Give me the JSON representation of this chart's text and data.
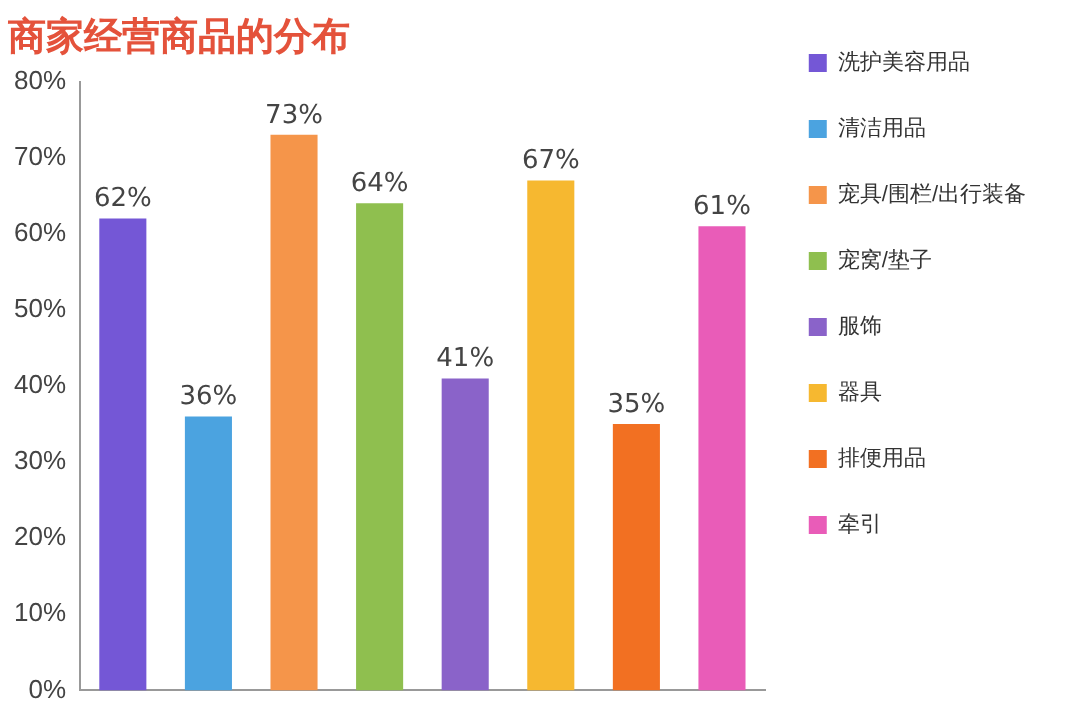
{
  "chart_data": {
    "type": "bar",
    "title": "商家经营商品的分布",
    "categories": [
      null
    ],
    "series": [
      {
        "name": "洗护美容用品",
        "color": "#7457d6",
        "values": [
          62
        ],
        "value_labels": [
          "62%"
        ]
      },
      {
        "name": "清洁用品",
        "color": "#4ba3e0",
        "values": [
          36
        ],
        "value_labels": [
          "36%"
        ]
      },
      {
        "name": "宠具/围栏/出行装备",
        "color": "#f5954a",
        "values": [
          73
        ],
        "value_labels": [
          "73%"
        ]
      },
      {
        "name": "宠窝/垫子",
        "color": "#8fbf4f",
        "values": [
          64
        ],
        "value_labels": [
          "64%"
        ]
      },
      {
        "name": "服饰",
        "color": "#8a63c9",
        "values": [
          41
        ],
        "value_labels": [
          "41%"
        ]
      },
      {
        "name": "器具",
        "color": "#f6b830",
        "values": [
          67
        ],
        "value_labels": [
          "67%"
        ]
      },
      {
        "name": "排便用品",
        "color": "#f27022",
        "values": [
          35
        ],
        "value_labels": [
          "35%"
        ]
      },
      {
        "name": "牵引",
        "color": "#e95cb8",
        "values": [
          61
        ],
        "value_labels": [
          "61%"
        ]
      }
    ],
    "ylim": [
      0,
      80
    ],
    "yticks": [
      {
        "value": 0,
        "label": "0%"
      },
      {
        "value": 10,
        "label": "10%"
      },
      {
        "value": 20,
        "label": "20%"
      },
      {
        "value": 30,
        "label": "30%"
      },
      {
        "value": 40,
        "label": "40%"
      },
      {
        "value": 50,
        "label": "50%"
      },
      {
        "value": 60,
        "label": "60%"
      },
      {
        "value": 70,
        "label": "70%"
      },
      {
        "value": 80,
        "label": "80%"
      }
    ],
    "tick_labels": "y",
    "legend": "right",
    "grid": false
  }
}
